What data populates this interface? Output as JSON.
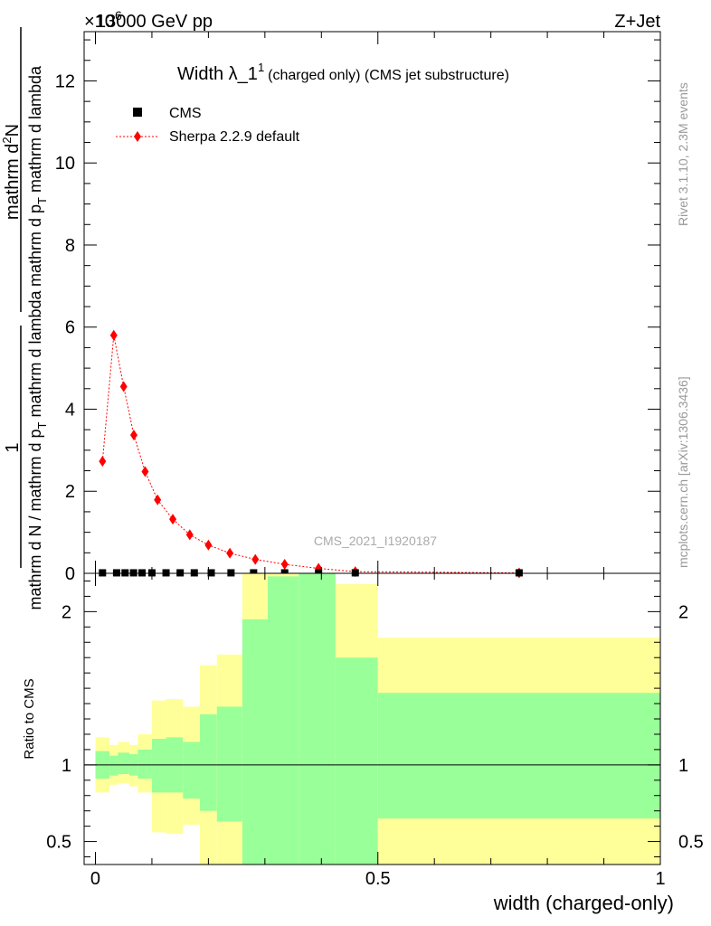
{
  "header": {
    "energy": "13000 GeV pp",
    "process": "Z+Jet",
    "exponent_label": "×10",
    "exponent_value": "6"
  },
  "title": {
    "main": "Width λ_1",
    "superscript": "1",
    "suffix": "(charged only) (CMS jet substructure)"
  },
  "side_labels": {
    "rivet": "Rivet 3.1.10,  2.3M events",
    "mcplots": "mcplots.cern.ch [arXiv:1306.3436]"
  },
  "watermark": "CMS_2021_I1920187",
  "y_label": {
    "numerator": "1",
    "denominator": "mathrm d N / mathrm d p",
    "denominator_sub": "T",
    "denominator_rest": " mathrm d lambda",
    "frac2_num": "mathrm d",
    "frac2_num_sup": "2",
    "frac2_num_rest": "N",
    "frac2_den": "mathrm d p",
    "frac2_den_sub": "T",
    "frac2_den_rest": " mathrm d lambda"
  },
  "x_label": "width (charged-only)",
  "ratio_y_label": "Ratio to CMS",
  "legend": [
    {
      "label": "CMS",
      "marker": "square",
      "color": "#000000"
    },
    {
      "label": "Sherpa 2.2.9 default",
      "marker": "diamond",
      "color": "#ff0000"
    }
  ],
  "chart_data": [
    {
      "type": "line",
      "panel": "main",
      "xlim": [
        -0.02,
        1.0
      ],
      "ylim": [
        0,
        13.2
      ],
      "y_scale_factor": 1000000,
      "y_ticks": [
        0,
        2,
        4,
        6,
        8,
        10,
        12
      ],
      "x_ticks": [
        0,
        0.5,
        1
      ],
      "series": [
        {
          "name": "CMS",
          "x": [
            0.0125,
            0.0375,
            0.0525,
            0.0675,
            0.0825,
            0.1,
            0.125,
            0.15,
            0.175,
            0.205,
            0.24,
            0.28,
            0.335,
            0.395,
            0.46,
            0.75
          ],
          "y": [
            0.012,
            0.012,
            0.012,
            0.012,
            0.012,
            0.012,
            0.012,
            0.012,
            0.012,
            0.012,
            0.012,
            0.012,
            0.012,
            0.012,
            0.012,
            0.012
          ]
        },
        {
          "name": "Sherpa 2.2.9 default",
          "x": [
            0.0125,
            0.0325,
            0.05,
            0.068,
            0.088,
            0.11,
            0.137,
            0.167,
            0.2,
            0.238,
            0.283,
            0.335,
            0.395,
            0.46,
            0.75
          ],
          "y": [
            2.73,
            5.8,
            4.55,
            3.37,
            2.48,
            1.79,
            1.32,
            0.94,
            0.69,
            0.49,
            0.34,
            0.22,
            0.12,
            0.04,
            0.01
          ]
        }
      ]
    },
    {
      "type": "area",
      "panel": "ratio",
      "xlim": [
        -0.02,
        1.0
      ],
      "ylim": [
        0.35,
        2.25
      ],
      "y_ticks": [
        0.5,
        1,
        2
      ],
      "reference_line": 1,
      "bins": [
        {
          "x0": 0.0,
          "x1": 0.025,
          "green": [
            0.91,
            1.09
          ],
          "yellow": [
            0.82,
            1.18
          ]
        },
        {
          "x0": 0.025,
          "x1": 0.04,
          "green": [
            0.93,
            1.06
          ],
          "yellow": [
            0.87,
            1.13
          ]
        },
        {
          "x0": 0.04,
          "x1": 0.06,
          "green": [
            0.94,
            1.08
          ],
          "yellow": [
            0.88,
            1.15
          ]
        },
        {
          "x0": 0.06,
          "x1": 0.075,
          "green": [
            0.93,
            1.07
          ],
          "yellow": [
            0.86,
            1.13
          ]
        },
        {
          "x0": 0.075,
          "x1": 0.1,
          "green": [
            0.91,
            1.1
          ],
          "yellow": [
            0.82,
            1.2
          ]
        },
        {
          "x0": 0.1,
          "x1": 0.125,
          "green": [
            0.82,
            1.17
          ],
          "yellow": [
            0.56,
            1.42
          ]
        },
        {
          "x0": 0.125,
          "x1": 0.155,
          "green": [
            0.82,
            1.18
          ],
          "yellow": [
            0.55,
            1.43
          ]
        },
        {
          "x0": 0.155,
          "x1": 0.185,
          "green": [
            0.78,
            1.15
          ],
          "yellow": [
            0.61,
            1.38
          ]
        },
        {
          "x0": 0.185,
          "x1": 0.215,
          "green": [
            0.7,
            1.33
          ],
          "yellow": [
            0.35,
            1.65
          ]
        },
        {
          "x0": 0.215,
          "x1": 0.26,
          "green": [
            0.63,
            1.38
          ],
          "yellow": [
            0.35,
            1.72
          ]
        },
        {
          "x0": 0.26,
          "x1": 0.305,
          "green": [
            0.35,
            1.95
          ],
          "yellow": [
            0.35,
            2.25
          ]
        },
        {
          "x0": 0.305,
          "x1": 0.36,
          "green": [
            0.35,
            2.23
          ],
          "yellow": [
            0.35,
            2.25
          ]
        },
        {
          "x0": 0.36,
          "x1": 0.425,
          "green": [
            0.35,
            2.25
          ],
          "yellow": [
            0.35,
            2.25
          ]
        },
        {
          "x0": 0.425,
          "x1": 0.5,
          "green": [
            0.35,
            1.7
          ],
          "yellow": [
            0.35,
            2.18
          ]
        },
        {
          "x0": 0.5,
          "x1": 1.0,
          "green": [
            0.65,
            1.47
          ],
          "yellow": [
            0.35,
            1.83
          ]
        }
      ]
    }
  ],
  "colors": {
    "green_band": "#99ff99",
    "yellow_band": "#ffff99",
    "sherpa": "#ff0000",
    "cms": "#000000",
    "side_text": "#999999"
  }
}
